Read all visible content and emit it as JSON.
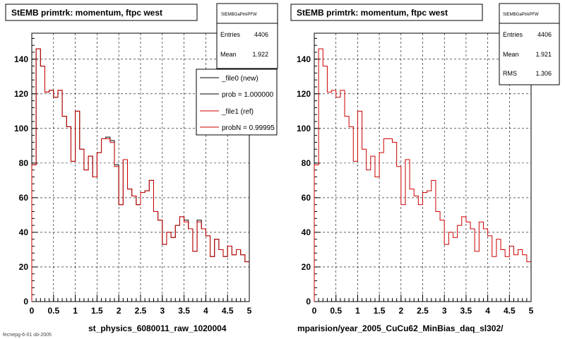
{
  "colors": {
    "new": "#000000",
    "ref": "#cc0000",
    "grid": "#000000"
  },
  "chart_data": [
    {
      "type": "line",
      "title": "StEMB primtrk: momentum, ftpc west",
      "xlabel": "st_physics_6080011_raw_1020004",
      "ylabel": "",
      "xlim": [
        0,
        5
      ],
      "ylim": [
        0,
        155
      ],
      "xticks": [
        "0",
        "0.5",
        "1",
        "1.5",
        "2",
        "2.5",
        "3",
        "3.5",
        "4",
        "4.5",
        "5"
      ],
      "yticks": [
        "0",
        "20",
        "40",
        "60",
        "80",
        "100",
        "120",
        "140"
      ],
      "grid": true,
      "bin_width": 0.1,
      "series": [
        {
          "name": "_file0 (new)",
          "color": "#000000",
          "values": [
            79,
            146,
            136,
            121,
            122,
            118,
            122,
            107,
            101,
            81,
            110,
            88,
            76,
            84,
            72,
            86,
            94,
            95,
            93,
            79,
            56,
            82,
            65,
            61,
            56,
            63,
            64,
            70,
            52,
            47,
            33,
            40,
            37,
            44,
            49,
            47,
            42,
            29,
            47,
            42,
            38,
            26,
            36,
            30,
            26,
            32,
            27,
            30,
            27,
            23
          ]
        },
        {
          "name": "_file1 (ref)",
          "color": "#cc0000",
          "values": [
            79,
            146,
            136,
            121,
            122,
            118,
            122,
            107,
            101,
            81,
            110,
            88,
            76,
            84,
            72,
            86,
            94,
            94,
            92,
            78,
            56,
            82,
            65,
            61,
            56,
            63,
            64,
            70,
            52,
            47,
            33,
            40,
            37,
            44,
            49,
            46,
            42,
            29,
            46,
            42,
            38,
            26,
            36,
            30,
            26,
            32,
            27,
            30,
            27,
            23
          ]
        }
      ],
      "stats": {
        "box_title": "StEMBGaPtrkPFW",
        "entries_label": "Entries",
        "entries": "4406",
        "mean_label": "Mean",
        "mean": "1.922"
      },
      "legend": {
        "placement": "top-right",
        "entries": [
          "_file0 (new)",
          "prob = 1.000000",
          "_file1 (ref)",
          "probN = 0.99995"
        ]
      }
    },
    {
      "type": "line",
      "title": "StEMB primtrk: momentum, ftpc west",
      "xlabel": "mparision/year_2005_CuCu62_MinBias_daq_sl302/",
      "ylabel": "",
      "xlim": [
        0,
        5
      ],
      "ylim": [
        0,
        155
      ],
      "xticks": [
        "0",
        "0.5",
        "1",
        "1.5",
        "2",
        "2.5",
        "3",
        "3.5",
        "4",
        "4.5",
        "5"
      ],
      "yticks": [
        "0",
        "20",
        "40",
        "60",
        "80",
        "100",
        "120",
        "140"
      ],
      "grid": true,
      "bin_width": 0.1,
      "series": [
        {
          "name": "",
          "color": "#cc0000",
          "values": [
            79,
            146,
            136,
            121,
            122,
            118,
            122,
            107,
            101,
            81,
            110,
            88,
            76,
            84,
            72,
            86,
            94,
            94,
            92,
            78,
            56,
            82,
            65,
            61,
            56,
            63,
            64,
            70,
            52,
            47,
            33,
            40,
            37,
            44,
            49,
            46,
            42,
            29,
            46,
            42,
            38,
            26,
            36,
            30,
            26,
            32,
            27,
            30,
            27,
            23
          ]
        }
      ],
      "stats": {
        "box_title": "StEMBGaPtrkPFW",
        "entries_label": "Entries",
        "entries": "4406",
        "mean_label": "Mean",
        "mean": "1.921",
        "rms_label": "RMS",
        "rms": "1.306"
      }
    }
  ],
  "footer_text": "fecnepg-6-01 ob-2005"
}
